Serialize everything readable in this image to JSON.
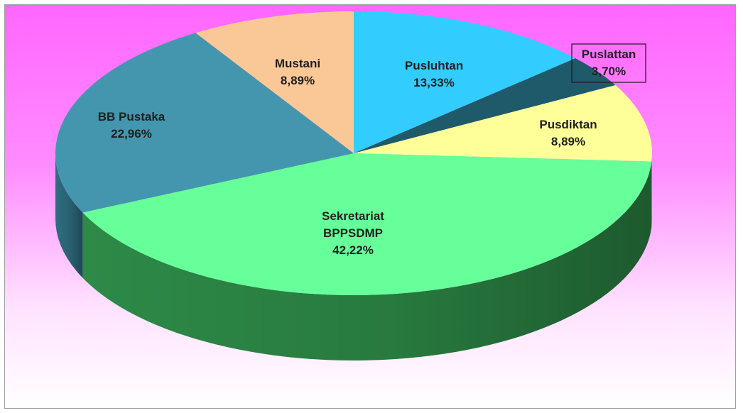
{
  "chart_data": {
    "type": "pie",
    "title": "",
    "slices": [
      {
        "name": "Pusluhtan",
        "value": 13.33,
        "label": "13,33%",
        "color": "#33ccff",
        "side": "#2a9fcc"
      },
      {
        "name": "Puslattan",
        "value": 3.7,
        "label": "3,70%",
        "color": "#1f5a6b",
        "side": "#163f4b",
        "boxed": true
      },
      {
        "name": "Pusdiktan",
        "value": 8.89,
        "label": "8,89%",
        "color": "#ffff99",
        "side": "#c9c66e"
      },
      {
        "name": "Sekretariat BPPSDMP",
        "value": 42.22,
        "label": "42,22%",
        "color": "#66ff99",
        "side": "#2d8a47"
      },
      {
        "name": "BB Pustaka",
        "value": 22.96,
        "label": "22,96%",
        "color": "#4396ad",
        "side": "#2e6d80"
      },
      {
        "name": "Mustani",
        "value": 8.89,
        "label": "8,89%",
        "color": "#fac897",
        "side": "#c69768"
      }
    ],
    "name_lines": {
      "Sekretariat BPPSDMP": [
        "Sekretariat",
        "BPPSDMP"
      ]
    },
    "legend": "none"
  }
}
